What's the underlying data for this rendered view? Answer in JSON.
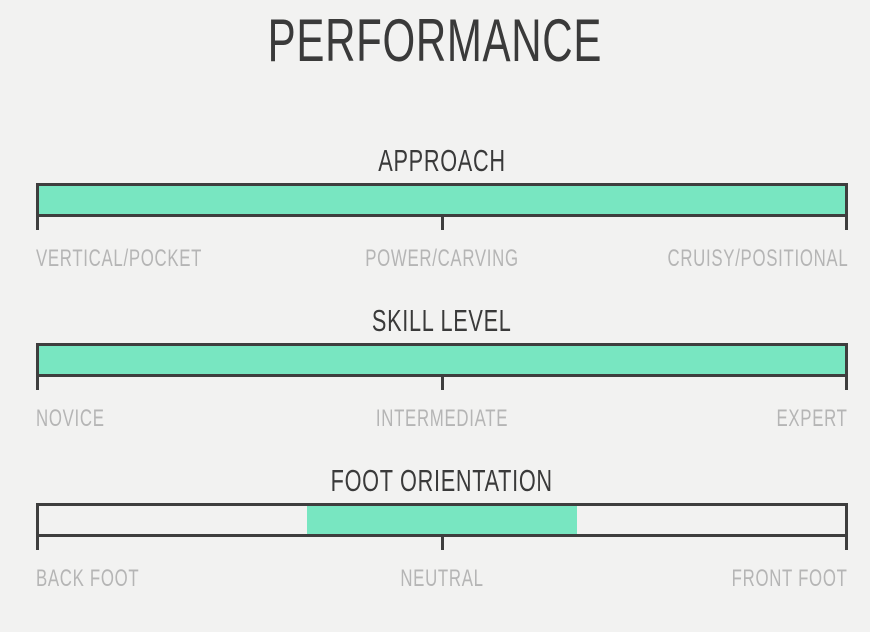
{
  "title": "PERFORMANCE",
  "colors": {
    "background": "#f2f2f1",
    "heading": "#3a3a3a",
    "label": "#b5b5b5",
    "accent": "#78e6c1",
    "track_border": "#3e3e3e"
  },
  "chart_data": {
    "type": "bar",
    "title": "PERFORMANCE",
    "orientation": "horizontal",
    "scales": [
      {
        "title": "APPROACH",
        "axis_labels": [
          "VERTICAL/POCKET",
          "POWER/CARVING",
          "CRUISY/POSITIONAL"
        ],
        "fill_start_pct": 0,
        "fill_end_pct": 100,
        "ticks_pct": [
          0,
          50,
          100
        ]
      },
      {
        "title": "SKILL LEVEL",
        "axis_labels": [
          "NOVICE",
          "INTERMEDIATE",
          "EXPERT"
        ],
        "fill_start_pct": 0,
        "fill_end_pct": 100,
        "ticks_pct": [
          0,
          50,
          100
        ]
      },
      {
        "title": "FOOT ORIENTATION",
        "axis_labels": [
          "BACK FOOT",
          "NEUTRAL",
          "FRONT FOOT"
        ],
        "fill_start_pct": 33.3,
        "fill_end_pct": 66.7,
        "ticks_pct": [
          0,
          50,
          100
        ]
      }
    ]
  }
}
